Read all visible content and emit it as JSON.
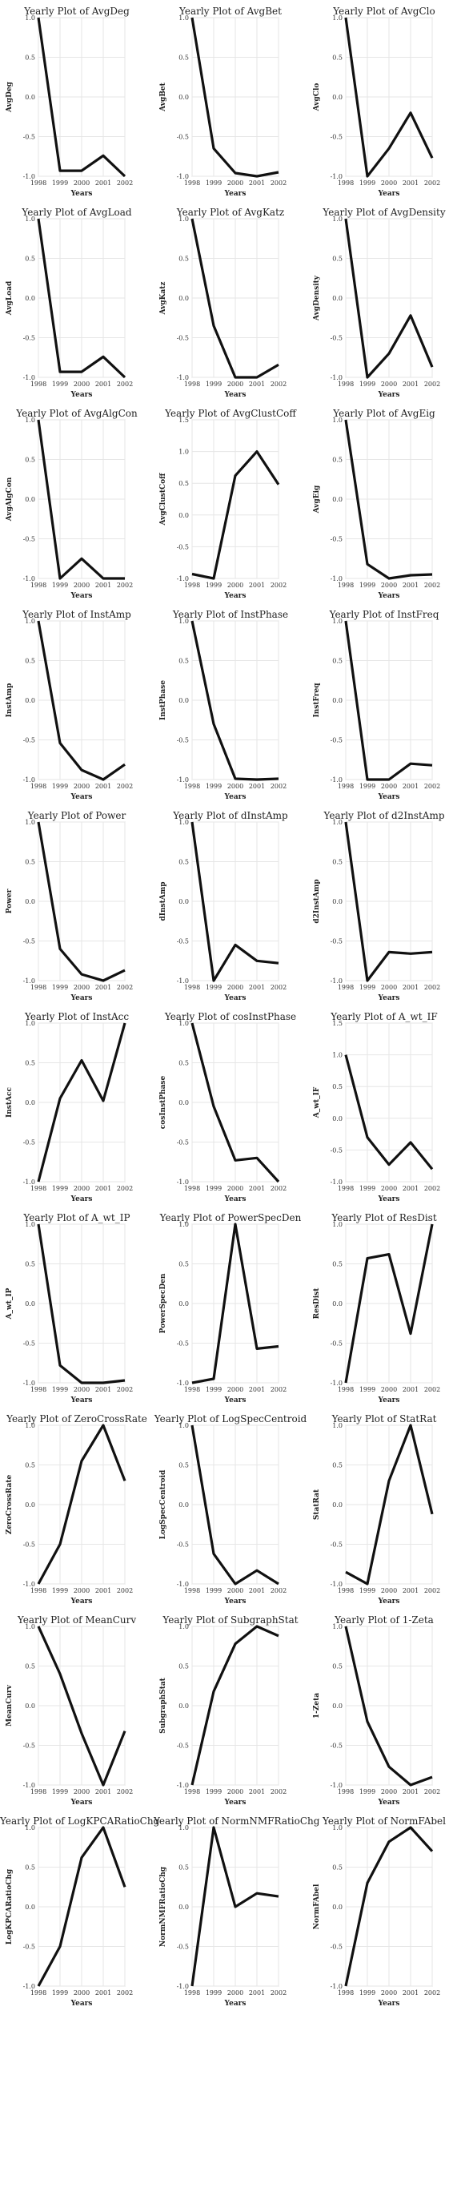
{
  "style": {
    "line_color": "#111111",
    "grid_color": "#e6e6e6",
    "frame_color": "#cccccc"
  },
  "chart_data": [
    {
      "type": "line",
      "title": "Yearly Plot of AvgDeg",
      "xlabel": "Years",
      "ylabel": "AvgDeg",
      "x": [
        1998,
        1999,
        2000,
        2001,
        2002
      ],
      "xticks": [
        "1998",
        "1999",
        "2000",
        "2001",
        "2002"
      ],
      "values": [
        1.0,
        -0.93,
        -0.93,
        -0.74,
        -1.0
      ],
      "ylim": [
        -1,
        1
      ],
      "yticks": [
        "-1.0",
        "-0.5",
        "0.0",
        "0.5",
        "1.0"
      ],
      "grid": true
    },
    {
      "type": "line",
      "title": "Yearly Plot of AvgBet",
      "xlabel": "Years",
      "ylabel": "AvgBet",
      "x": [
        1998,
        1999,
        2000,
        2001,
        2002
      ],
      "xticks": [
        "1998",
        "1999",
        "2000",
        "2001",
        "2002"
      ],
      "values": [
        1.0,
        -0.65,
        -0.96,
        -1.0,
        -0.95
      ],
      "ylim": [
        -1,
        1
      ],
      "yticks": [
        "-1.0",
        "-0.5",
        "0.0",
        "0.5",
        "1.0"
      ],
      "grid": true
    },
    {
      "type": "line",
      "title": "Yearly Plot of AvgClo",
      "xlabel": "Years",
      "ylabel": "AvgClo",
      "x": [
        1998,
        1999,
        2000,
        2001,
        2002
      ],
      "xticks": [
        "1998",
        "1999",
        "2000",
        "2001",
        "2002"
      ],
      "values": [
        1.0,
        -1.0,
        -0.65,
        -0.2,
        -0.77
      ],
      "ylim": [
        -1,
        1
      ],
      "yticks": [
        "-1.0",
        "-0.5",
        "0.0",
        "0.5",
        "1.0"
      ],
      "grid": true
    },
    {
      "type": "line",
      "title": "Yearly Plot of AvgLoad",
      "xlabel": "Years",
      "ylabel": "AvgLoad",
      "x": [
        1998,
        1999,
        2000,
        2001,
        2002
      ],
      "xticks": [
        "1998",
        "1999",
        "2000",
        "2001",
        "2002"
      ],
      "values": [
        1.0,
        -0.93,
        -0.93,
        -0.74,
        -1.0
      ],
      "ylim": [
        -1,
        1
      ],
      "yticks": [
        "-1.0",
        "-0.5",
        "0.0",
        "0.5",
        "1.0"
      ],
      "grid": true
    },
    {
      "type": "line",
      "title": "Yearly Plot of AvgKatz",
      "xlabel": "Years",
      "ylabel": "AvgKatz",
      "x": [
        1998,
        1999,
        2000,
        2001,
        2002
      ],
      "xticks": [
        "1998",
        "1999",
        "2000",
        "2001",
        "2002"
      ],
      "values": [
        1.0,
        -0.35,
        -1.0,
        -1.0,
        -0.84
      ],
      "ylim": [
        -1,
        1
      ],
      "yticks": [
        "-1.0",
        "-0.5",
        "0.0",
        "0.5",
        "1.0"
      ],
      "grid": true
    },
    {
      "type": "line",
      "title": "Yearly Plot of AvgDensity",
      "xlabel": "Years",
      "ylabel": "AvgDensity",
      "x": [
        1998,
        1999,
        2000,
        2001,
        2002
      ],
      "xticks": [
        "1998",
        "1999",
        "2000",
        "2001",
        "2002"
      ],
      "values": [
        1.0,
        -1.0,
        -0.7,
        -0.22,
        -0.87
      ],
      "ylim": [
        -1,
        1
      ],
      "yticks": [
        "-1.0",
        "-0.5",
        "0.0",
        "0.5",
        "1.0"
      ],
      "grid": true
    },
    {
      "type": "line",
      "title": "Yearly Plot of AvgAlgCon",
      "xlabel": "Years",
      "ylabel": "AvgAlgCon",
      "x": [
        1998,
        1999,
        2000,
        2001,
        2002
      ],
      "xticks": [
        "1998",
        "1999",
        "2000",
        "2001",
        "2002"
      ],
      "values": [
        1.0,
        -1.0,
        -0.75,
        -1.0,
        -1.0
      ],
      "ylim": [
        -1,
        1
      ],
      "yticks": [
        "-1.0",
        "-0.5",
        "0.0",
        "0.5",
        "1.0"
      ],
      "grid": true
    },
    {
      "type": "line",
      "title": "Yearly Plot of AvgClustCoff",
      "xlabel": "Years",
      "ylabel": "AvgClustCoff",
      "x": [
        1998,
        1999,
        2000,
        2001,
        2002
      ],
      "xticks": [
        "1998",
        "1999",
        "2000",
        "2001",
        "2002"
      ],
      "values": [
        -0.93,
        -1.0,
        0.62,
        1.0,
        0.48
      ],
      "ylim": [
        -1,
        1.5
      ],
      "yticks": [
        "-1.0",
        "-0.5",
        "0.0",
        "0.5",
        "1.0",
        "1.5"
      ],
      "grid": true
    },
    {
      "type": "line",
      "title": "Yearly Plot of AvgEig",
      "xlabel": "Years",
      "ylabel": "AvgEig",
      "x": [
        1998,
        1999,
        2000,
        2001,
        2002
      ],
      "xticks": [
        "1998",
        "1999",
        "2000",
        "2001",
        "2002"
      ],
      "values": [
        1.0,
        -0.82,
        -1.0,
        -0.96,
        -0.95
      ],
      "ylim": [
        -1,
        1
      ],
      "yticks": [
        "-1.0",
        "-0.5",
        "0.0",
        "0.5",
        "1.0"
      ],
      "grid": true
    },
    {
      "type": "line",
      "title": "Yearly Plot of InstAmp",
      "xlabel": "Years",
      "ylabel": "InstAmp",
      "x": [
        1998,
        1999,
        2000,
        2001,
        2002
      ],
      "xticks": [
        "1998",
        "1999",
        "2000",
        "2001",
        "2002"
      ],
      "values": [
        1.0,
        -0.54,
        -0.88,
        -1.0,
        -0.81
      ],
      "ylim": [
        -1,
        1
      ],
      "yticks": [
        "-1.0",
        "-0.5",
        "0.0",
        "0.5",
        "1.0"
      ],
      "grid": true
    },
    {
      "type": "line",
      "title": "Yearly Plot of InstPhase",
      "xlabel": "Years",
      "ylabel": "InstPhase",
      "x": [
        1998,
        1999,
        2000,
        2001,
        2002
      ],
      "xticks": [
        "1998",
        "1999",
        "2000",
        "2001",
        "2002"
      ],
      "values": [
        1.0,
        -0.3,
        -0.99,
        -1.0,
        -0.99
      ],
      "ylim": [
        -1,
        1
      ],
      "yticks": [
        "-1.0",
        "-0.5",
        "0.0",
        "0.5",
        "1.0"
      ],
      "grid": true
    },
    {
      "type": "line",
      "title": "Yearly Plot of InstFreq",
      "xlabel": "Years",
      "ylabel": "InstFreq",
      "x": [
        1998,
        1999,
        2000,
        2001,
        2002
      ],
      "xticks": [
        "1998",
        "1999",
        "2000",
        "2001",
        "2002"
      ],
      "values": [
        1.0,
        -1.0,
        -1.0,
        -0.8,
        -0.82
      ],
      "ylim": [
        -1,
        1
      ],
      "yticks": [
        "-1.0",
        "-0.5",
        "0.0",
        "0.5",
        "1.0"
      ],
      "grid": true
    },
    {
      "type": "line",
      "title": "Yearly Plot of Power",
      "xlabel": "Years",
      "ylabel": "Power",
      "x": [
        1998,
        1999,
        2000,
        2001,
        2002
      ],
      "xticks": [
        "1998",
        "1999",
        "2000",
        "2001",
        "2002"
      ],
      "values": [
        1.0,
        -0.6,
        -0.92,
        -1.0,
        -0.87
      ],
      "ylim": [
        -1,
        1
      ],
      "yticks": [
        "-1.0",
        "-0.5",
        "0.0",
        "0.5",
        "1.0"
      ],
      "grid": true
    },
    {
      "type": "line",
      "title": "Yearly Plot of dInstAmp",
      "xlabel": "Years",
      "ylabel": "dInstAmp",
      "x": [
        1998,
        1999,
        2000,
        2001,
        2002
      ],
      "xticks": [
        "1998",
        "1999",
        "2000",
        "2001",
        "2002"
      ],
      "values": [
        1.0,
        -1.0,
        -0.55,
        -0.75,
        -0.78
      ],
      "ylim": [
        -1,
        1
      ],
      "yticks": [
        "-1.0",
        "-0.5",
        "0.0",
        "0.5",
        "1.0"
      ],
      "grid": true
    },
    {
      "type": "line",
      "title": "Yearly Plot of d2InstAmp",
      "xlabel": "Years",
      "ylabel": "d2InstAmp",
      "x": [
        1998,
        1999,
        2000,
        2001,
        2002
      ],
      "xticks": [
        "1998",
        "1999",
        "2000",
        "2001",
        "2002"
      ],
      "values": [
        1.0,
        -1.0,
        -0.64,
        -0.66,
        -0.64
      ],
      "ylim": [
        -1,
        1
      ],
      "yticks": [
        "-1.0",
        "-0.5",
        "0.0",
        "0.5",
        "1.0"
      ],
      "grid": true
    },
    {
      "type": "line",
      "title": "Yearly Plot of InstAcc",
      "xlabel": "Years",
      "ylabel": "InstAcc",
      "x": [
        1998,
        1999,
        2000,
        2001,
        2002
      ],
      "xticks": [
        "1998",
        "1999",
        "2000",
        "2001",
        "2002"
      ],
      "values": [
        -1.0,
        0.05,
        0.53,
        0.02,
        1.0
      ],
      "ylim": [
        -1,
        1
      ],
      "yticks": [
        "-1.0",
        "-0.5",
        "0.0",
        "0.5",
        "1.0"
      ],
      "grid": true
    },
    {
      "type": "line",
      "title": "Yearly Plot of cosInstPhase",
      "xlabel": "Years",
      "ylabel": "cosInstPhase",
      "x": [
        1998,
        1999,
        2000,
        2001,
        2002
      ],
      "xticks": [
        "1998",
        "1999",
        "2000",
        "2001",
        "2002"
      ],
      "values": [
        1.0,
        -0.05,
        -0.73,
        -0.7,
        -1.0
      ],
      "ylim": [
        -1,
        1
      ],
      "yticks": [
        "-1.0",
        "-0.5",
        "0.0",
        "0.5",
        "1.0"
      ],
      "grid": true
    },
    {
      "type": "line",
      "title": "Yearly Plot of A_wt_IF",
      "xlabel": "Years",
      "ylabel": "A_wt_IF",
      "x": [
        1998,
        1999,
        2000,
        2001,
        2002
      ],
      "xticks": [
        "1998",
        "1999",
        "2000",
        "2001",
        "2002"
      ],
      "values": [
        1.0,
        -0.3,
        -0.73,
        -0.38,
        -0.8
      ],
      "ylim": [
        -1,
        1.5
      ],
      "yticks": [
        "-1.0",
        "-0.5",
        "0.0",
        "0.5",
        "1.0",
        "1.5"
      ],
      "grid": true
    },
    {
      "type": "line",
      "title": "Yearly Plot of A_wt_IP",
      "xlabel": "Years",
      "ylabel": "A_wt_IP",
      "x": [
        1998,
        1999,
        2000,
        2001,
        2002
      ],
      "xticks": [
        "1998",
        "1999",
        "2000",
        "2001",
        "2002"
      ],
      "values": [
        1.0,
        -0.78,
        -1.0,
        -1.0,
        -0.97
      ],
      "ylim": [
        -1,
        1
      ],
      "yticks": [
        "-1.0",
        "-0.5",
        "0.0",
        "0.5",
        "1.0"
      ],
      "grid": true
    },
    {
      "type": "line",
      "title": "Yearly Plot of PowerSpecDen",
      "xlabel": "Years",
      "ylabel": "PowerSpecDen",
      "x": [
        1998,
        1999,
        2000,
        2001,
        2002
      ],
      "xticks": [
        "1998",
        "1999",
        "2000",
        "2001",
        "2002"
      ],
      "values": [
        -1.0,
        -0.95,
        1.0,
        -0.57,
        -0.54
      ],
      "ylim": [
        -1,
        1
      ],
      "yticks": [
        "-1.0",
        "-0.5",
        "0.0",
        "0.5",
        "1.0"
      ],
      "grid": true
    },
    {
      "type": "line",
      "title": "Yearly Plot of ResDist",
      "xlabel": "Years",
      "ylabel": "ResDist",
      "x": [
        1998,
        1999,
        2000,
        2001,
        2002
      ],
      "xticks": [
        "1998",
        "1999",
        "2000",
        "2001",
        "2002"
      ],
      "values": [
        -1.0,
        0.57,
        0.62,
        -0.38,
        1.0
      ],
      "ylim": [
        -1,
        1
      ],
      "yticks": [
        "-1.0",
        "-0.5",
        "0.0",
        "0.5",
        "1.0"
      ],
      "grid": true
    },
    {
      "type": "line",
      "title": "Yearly Plot of ZeroCrossRate",
      "xlabel": "Years",
      "ylabel": "ZeroCrossRate",
      "x": [
        1998,
        1999,
        2000,
        2001,
        2002
      ],
      "xticks": [
        "1998",
        "1999",
        "2000",
        "2001",
        "2002"
      ],
      "values": [
        -1.0,
        -0.5,
        0.55,
        1.0,
        0.3
      ],
      "ylim": [
        -1,
        1
      ],
      "yticks": [
        "-1.0",
        "-0.5",
        "0.0",
        "0.5",
        "1.0"
      ],
      "grid": true
    },
    {
      "type": "line",
      "title": "Yearly Plot of LogSpecCentroid",
      "xlabel": "Years",
      "ylabel": "LogSpecCentroid",
      "x": [
        1998,
        1999,
        2000,
        2001,
        2002
      ],
      "xticks": [
        "1998",
        "1999",
        "2000",
        "2001",
        "2002"
      ],
      "values": [
        1.0,
        -0.62,
        -1.0,
        -0.83,
        -1.0
      ],
      "ylim": [
        -1,
        1
      ],
      "yticks": [
        "-1.0",
        "-0.5",
        "0.0",
        "0.5",
        "1.0"
      ],
      "grid": true
    },
    {
      "type": "line",
      "title": "Yearly Plot of StatRat",
      "xlabel": "Years",
      "ylabel": "StatRat",
      "x": [
        1998,
        1999,
        2000,
        2001,
        2002
      ],
      "xticks": [
        "1998",
        "1999",
        "2000",
        "2001",
        "2002"
      ],
      "values": [
        -0.85,
        -1.0,
        0.3,
        1.0,
        -0.12
      ],
      "ylim": [
        -1,
        1
      ],
      "yticks": [
        "-1.0",
        "-0.5",
        "0.0",
        "0.5",
        "1.0"
      ],
      "grid": true
    },
    {
      "type": "line",
      "title": "Yearly Plot of MeanCurv",
      "xlabel": "Years",
      "ylabel": "MeanCurv",
      "x": [
        1998,
        1999,
        2000,
        2001,
        2002
      ],
      "xticks": [
        "1998",
        "1999",
        "2000",
        "2001",
        "2002"
      ],
      "values": [
        1.0,
        0.4,
        -0.35,
        -1.0,
        -0.32
      ],
      "ylim": [
        -1,
        1
      ],
      "yticks": [
        "-1.0",
        "-0.5",
        "0.0",
        "0.5",
        "1.0"
      ],
      "grid": true
    },
    {
      "type": "line",
      "title": "Yearly Plot of SubgraphStat",
      "xlabel": "Years",
      "ylabel": "SubgraphStat",
      "x": [
        1998,
        1999,
        2000,
        2001,
        2002
      ],
      "xticks": [
        "1998",
        "1999",
        "2000",
        "2001",
        "2002"
      ],
      "values": [
        -1.0,
        0.18,
        0.78,
        1.0,
        0.88
      ],
      "ylim": [
        -1,
        1
      ],
      "yticks": [
        "-1.0",
        "-0.5",
        "0.0",
        "0.5",
        "1.0"
      ],
      "grid": true
    },
    {
      "type": "line",
      "title": "Yearly Plot of 1-Zeta",
      "xlabel": "Years",
      "ylabel": "1-Zeta",
      "x": [
        1998,
        1999,
        2000,
        2001,
        2002
      ],
      "xticks": [
        "1998",
        "1999",
        "2000",
        "2001",
        "2002"
      ],
      "values": [
        1.0,
        -0.2,
        -0.77,
        -1.0,
        -0.9
      ],
      "ylim": [
        -1,
        1
      ],
      "yticks": [
        "-1.0",
        "-0.5",
        "0.0",
        "0.5",
        "1.0"
      ],
      "grid": true
    },
    {
      "type": "line",
      "title": "Yearly Plot of LogKPCARatioChg",
      "xlabel": "Years",
      "ylabel": "LogKPCARatioChg",
      "x": [
        1998,
        1999,
        2000,
        2001,
        2002
      ],
      "xticks": [
        "1998",
        "1999",
        "2000",
        "2001",
        "2002"
      ],
      "values": [
        -1.0,
        -0.5,
        0.62,
        1.0,
        0.25
      ],
      "ylim": [
        -1,
        1
      ],
      "yticks": [
        "-1.0",
        "-0.5",
        "0.0",
        "0.5",
        "1.0"
      ],
      "grid": true
    },
    {
      "type": "line",
      "title": "Yearly Plot of NormNMFRatioChg",
      "xlabel": "Years",
      "ylabel": "NormNMFRatioChg",
      "x": [
        1998,
        1999,
        2000,
        2001,
        2002
      ],
      "xticks": [
        "1998",
        "1999",
        "2000",
        "2001",
        "2002"
      ],
      "values": [
        -1.0,
        1.0,
        0.0,
        0.17,
        0.13
      ],
      "ylim": [
        -1,
        1
      ],
      "yticks": [
        "-1.0",
        "-0.5",
        "0.0",
        "0.5",
        "1.0"
      ],
      "grid": true
    },
    {
      "type": "line",
      "title": "Yearly Plot of NormFAbel",
      "xlabel": "Years",
      "ylabel": "NormFAbel",
      "x": [
        1998,
        1999,
        2000,
        2001,
        2002
      ],
      "xticks": [
        "1998",
        "1999",
        "2000",
        "2001",
        "2002"
      ],
      "values": [
        -1.0,
        0.3,
        0.82,
        1.0,
        0.7
      ],
      "ylim": [
        -1,
        1
      ],
      "yticks": [
        "-1.0",
        "-0.5",
        "0.0",
        "0.5",
        "1.0"
      ],
      "grid": true
    }
  ]
}
